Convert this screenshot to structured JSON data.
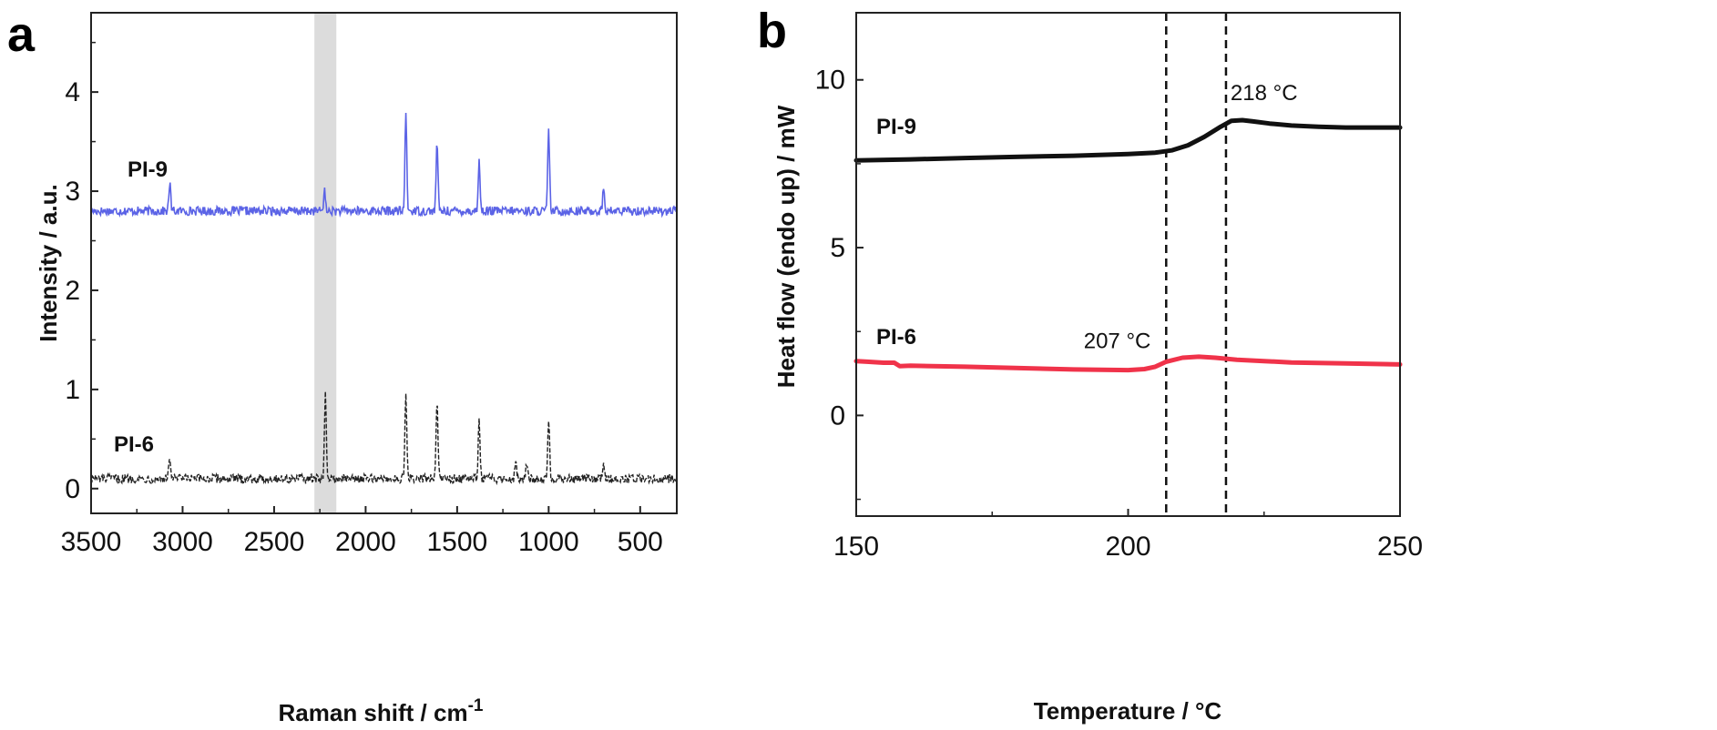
{
  "chart_data": [
    {
      "panel": "a",
      "type": "line",
      "xlabel": "Raman shift / cm",
      "xlabel_superscript": "-1",
      "ylabel": "Intensity / a.u.",
      "xlim": [
        3500,
        300
      ],
      "ylim": [
        -0.25,
        4.8
      ],
      "xticks": [
        3500,
        3000,
        2500,
        2000,
        1500,
        1000,
        500
      ],
      "yticks": [
        0,
        1,
        2,
        3,
        4
      ],
      "highlight_band": [
        2280,
        2160
      ],
      "colors": {
        "PI-9": "#5b63e6",
        "PI-6": "#222222",
        "band": "#d6d6d6"
      },
      "series": [
        {
          "name": "PI-9",
          "label": "PI-9",
          "baseline": 2.8,
          "peaks": [
            [
              3070,
              0.28
            ],
            [
              2225,
              0.2
            ],
            [
              1780,
              0.98
            ],
            [
              1610,
              0.7
            ],
            [
              1380,
              0.5
            ],
            [
              1000,
              0.8
            ],
            [
              700,
              0.22
            ]
          ]
        },
        {
          "name": "PI-6",
          "label": "PI-6",
          "baseline": 0.1,
          "peaks": [
            [
              3070,
              0.22
            ],
            [
              2220,
              0.85
            ],
            [
              1780,
              0.85
            ],
            [
              1610,
              0.83
            ],
            [
              1380,
              0.63
            ],
            [
              1180,
              0.2
            ],
            [
              1120,
              0.15
            ],
            [
              1000,
              0.6
            ],
            [
              700,
              0.12
            ]
          ]
        }
      ]
    },
    {
      "panel": "b",
      "type": "line",
      "xlabel": "Temperature / °C",
      "ylabel": "Heat flow (endo up) / mW",
      "xlim": [
        150,
        250
      ],
      "ylim": [
        -3,
        12
      ],
      "xticks": [
        150,
        200,
        250
      ],
      "yticks": [
        0,
        5,
        10
      ],
      "vlines": [
        207,
        218
      ],
      "annotations": [
        {
          "text": "218 °C",
          "x": 225,
          "y": 9.4
        },
        {
          "text": "207 °C",
          "x": 198,
          "y": 2.0
        }
      ],
      "colors": {
        "PI-9": "#111111",
        "PI-6": "#f0334a"
      },
      "series": [
        {
          "name": "PI-9",
          "label": "PI-9",
          "x": [
            150,
            160,
            170,
            180,
            190,
            200,
            205,
            208,
            211,
            214,
            217,
            219,
            221,
            223,
            226,
            230,
            235,
            240,
            245,
            250
          ],
          "y": [
            7.6,
            7.63,
            7.67,
            7.71,
            7.74,
            7.79,
            7.83,
            7.9,
            8.05,
            8.3,
            8.6,
            8.78,
            8.8,
            8.76,
            8.7,
            8.64,
            8.6,
            8.58,
            8.58,
            8.58
          ]
        },
        {
          "name": "PI-6",
          "label": "PI-6",
          "x": [
            150,
            152,
            155,
            157,
            158,
            160,
            170,
            180,
            190,
            200,
            203,
            205,
            207,
            210,
            213,
            216,
            220,
            225,
            230,
            240,
            250
          ],
          "y": [
            1.62,
            1.6,
            1.57,
            1.57,
            1.47,
            1.48,
            1.45,
            1.41,
            1.37,
            1.35,
            1.38,
            1.45,
            1.6,
            1.72,
            1.75,
            1.72,
            1.66,
            1.62,
            1.58,
            1.55,
            1.52
          ]
        }
      ]
    }
  ]
}
